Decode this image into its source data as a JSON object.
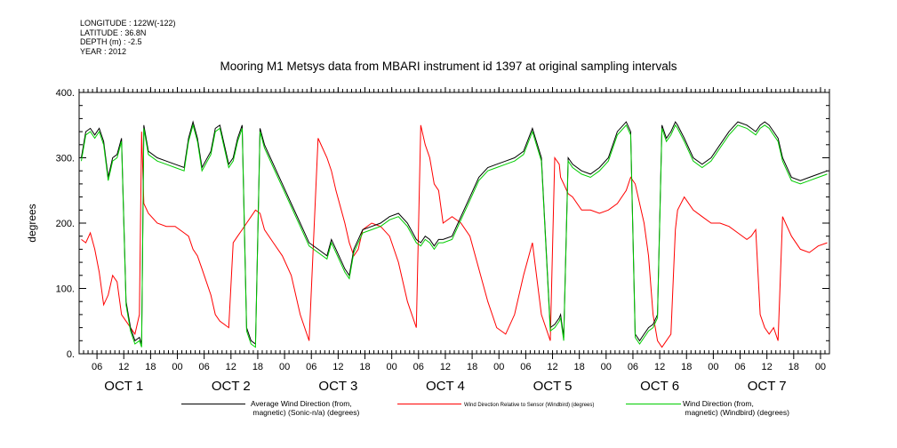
{
  "meta": {
    "longitude": "LONGITUDE : 122W(-122)",
    "latitude": "LATITUDE : 36.8N",
    "depth": "DEPTH (m) : -2.5",
    "year": "YEAR : 2012"
  },
  "colors": {
    "black_series": "#000000",
    "red_series": "#ff0000",
    "green_series": "#00cc00",
    "axis": "#000000"
  },
  "chart_data": {
    "type": "line",
    "title": "Mooring M1 Metsys data from MBARI instrument id 1397 at original sampling intervals",
    "ylabel": "degrees",
    "xlabel": "",
    "ylim": [
      0,
      400
    ],
    "yticks": [
      0,
      100,
      200,
      300,
      400
    ],
    "ytick_labels": [
      "0.",
      "100.",
      "200.",
      "300.",
      "400."
    ],
    "x_unit": "hours since 2012-10-01 00:00",
    "xlim": [
      2,
      170
    ],
    "hour_ticks": [
      {
        "x": 6,
        "label": "06"
      },
      {
        "x": 12,
        "label": "12"
      },
      {
        "x": 18,
        "label": "18"
      },
      {
        "x": 24,
        "label": "00"
      },
      {
        "x": 30,
        "label": "06"
      },
      {
        "x": 36,
        "label": "12"
      },
      {
        "x": 42,
        "label": "18"
      },
      {
        "x": 48,
        "label": "00"
      },
      {
        "x": 54,
        "label": "06"
      },
      {
        "x": 60,
        "label": "12"
      },
      {
        "x": 66,
        "label": "18"
      },
      {
        "x": 72,
        "label": "00"
      },
      {
        "x": 78,
        "label": "06"
      },
      {
        "x": 84,
        "label": "12"
      },
      {
        "x": 90,
        "label": "18"
      },
      {
        "x": 96,
        "label": "00"
      },
      {
        "x": 102,
        "label": "06"
      },
      {
        "x": 108,
        "label": "12"
      },
      {
        "x": 114,
        "label": "18"
      },
      {
        "x": 120,
        "label": "00"
      },
      {
        "x": 126,
        "label": "06"
      },
      {
        "x": 132,
        "label": "12"
      },
      {
        "x": 138,
        "label": "18"
      },
      {
        "x": 144,
        "label": "00"
      },
      {
        "x": 150,
        "label": "06"
      },
      {
        "x": 156,
        "label": "12"
      },
      {
        "x": 162,
        "label": "18"
      },
      {
        "x": 168,
        "label": "00"
      }
    ],
    "day_labels": [
      {
        "x": 12,
        "label": "OCT  1"
      },
      {
        "x": 36,
        "label": "OCT  2"
      },
      {
        "x": 60,
        "label": "OCT  3"
      },
      {
        "x": 84,
        "label": "OCT  4"
      },
      {
        "x": 108,
        "label": "OCT  5"
      },
      {
        "x": 132,
        "label": "OCT  6"
      },
      {
        "x": 156,
        "label": "OCT  7"
      }
    ],
    "legend_placement": "bottom",
    "grid": false,
    "series": [
      {
        "name": "Average Wind Direction (from,\n magnetic) (Sonic-n/a) (degrees)",
        "color": "#000000",
        "x": [
          2.5,
          3.5,
          4.5,
          5.5,
          6.5,
          7.5,
          8.5,
          9.5,
          10.5,
          11.5,
          12.5,
          13.5,
          14.5,
          15.5,
          16,
          16.5,
          17.5,
          19.5,
          21.5,
          23.5,
          25.5,
          26.5,
          27.5,
          28.5,
          29.5,
          31.5,
          32.5,
          33.5,
          35.5,
          36.5,
          37.5,
          38.5,
          39.5,
          40.5,
          41.5,
          42.5,
          43.5,
          45.5,
          47.5,
          49.5,
          51.5,
          53.5,
          55.5,
          57.5,
          58.5,
          59.5,
          61.5,
          62.5,
          63.5,
          64.5,
          65.5,
          67.5,
          69.5,
          71.5,
          73.5,
          75.5,
          77.5,
          78.5,
          79.5,
          80.5,
          81.5,
          82.5,
          83.5,
          85.5,
          87.5,
          89.5,
          91.5,
          93.5,
          95.5,
          97.5,
          99.5,
          101.5,
          103.5,
          105.5,
          107.5,
          108.5,
          109.5,
          109.8,
          110.5,
          111.5,
          112.5,
          114.5,
          116.5,
          118.5,
          120.5,
          122.5,
          124.5,
          125.5,
          126.5,
          127.5,
          128.5,
          129.5,
          130.5,
          131.5,
          132.5,
          133.5,
          134.5,
          135.5,
          136,
          137.5,
          139.5,
          141.5,
          143.5,
          145.5,
          147.5,
          149.5,
          151.5,
          152.5,
          153.5,
          154.5,
          155.5,
          156.5,
          157.5,
          158.5,
          159.5,
          161.5,
          163.5,
          165.5,
          167.5,
          169.5
        ],
        "values": [
          300,
          340,
          345,
          335,
          345,
          325,
          270,
          300,
          305,
          330,
          80,
          40,
          20,
          25,
          15,
          350,
          310,
          300,
          295,
          290,
          285,
          330,
          355,
          330,
          285,
          310,
          345,
          350,
          290,
          300,
          330,
          350,
          40,
          20,
          15,
          345,
          320,
          290,
          260,
          230,
          200,
          170,
          160,
          150,
          175,
          160,
          130,
          120,
          160,
          175,
          190,
          195,
          200,
          210,
          215,
          200,
          175,
          170,
          180,
          175,
          165,
          175,
          175,
          180,
          210,
          240,
          270,
          285,
          290,
          295,
          300,
          310,
          345,
          300,
          40,
          45,
          55,
          60,
          25,
          300,
          290,
          280,
          275,
          285,
          300,
          340,
          355,
          340,
          30,
          20,
          30,
          40,
          45,
          60,
          350,
          330,
          340,
          355,
          350,
          330,
          300,
          290,
          300,
          320,
          340,
          355,
          350,
          345,
          340,
          350,
          355,
          350,
          340,
          330,
          300,
          270,
          265,
          270,
          275,
          280
        ]
      },
      {
        "name": "Wind Direction Relative to Sensor (Windbird) (degrees)",
        "color": "#ff0000",
        "x": [
          2.5,
          3.5,
          4.5,
          5.5,
          6.5,
          7.5,
          8.5,
          9.5,
          10.5,
          11.5,
          12.5,
          13.5,
          14.5,
          15.5,
          16,
          16.5,
          17.5,
          19.5,
          21.5,
          23.5,
          25.5,
          26.5,
          27.5,
          28.5,
          29.5,
          31.5,
          32.5,
          33.5,
          35.5,
          36.5,
          37.5,
          38.5,
          39.5,
          40.5,
          41.5,
          42.5,
          43.5,
          45.5,
          47.5,
          49.5,
          51.5,
          53.5,
          55.5,
          57.5,
          58.5,
          59.5,
          61.5,
          62.5,
          63.5,
          64.5,
          65.5,
          67.5,
          69.5,
          71.5,
          73.5,
          75.5,
          77.5,
          78.5,
          79.5,
          80.5,
          81.5,
          82.5,
          83.5,
          85.5,
          87.5,
          89.5,
          91.5,
          93.5,
          95.5,
          97.5,
          99.5,
          101.5,
          103.5,
          105.5,
          107.5,
          108.5,
          109.5,
          109.8,
          110.5,
          111.5,
          112.5,
          114.5,
          116.5,
          118.5,
          120.5,
          122.5,
          124.5,
          125.5,
          126.5,
          127.5,
          128.5,
          129.5,
          130.5,
          131.5,
          132.5,
          133.5,
          134.5,
          135.5,
          136,
          137.5,
          139.5,
          141.5,
          143.5,
          145.5,
          147.5,
          149.5,
          151.5,
          152.5,
          153.5,
          154.5,
          155.5,
          156.5,
          157.5,
          158.5,
          159.5,
          161.5,
          163.5,
          165.5,
          167.5,
          169.5
        ],
        "values": [
          175,
          170,
          185,
          160,
          125,
          75,
          90,
          120,
          110,
          60,
          50,
          40,
          30,
          60,
          340,
          230,
          215,
          200,
          195,
          195,
          185,
          180,
          160,
          150,
          130,
          90,
          60,
          50,
          40,
          170,
          180,
          190,
          200,
          210,
          220,
          215,
          190,
          170,
          150,
          120,
          60,
          20,
          330,
          300,
          280,
          250,
          200,
          170,
          150,
          160,
          190,
          200,
          195,
          180,
          140,
          80,
          40,
          350,
          320,
          300,
          260,
          250,
          200,
          210,
          200,
          180,
          130,
          80,
          40,
          30,
          60,
          120,
          170,
          60,
          20,
          300,
          290,
          270,
          260,
          245,
          240,
          220,
          220,
          215,
          220,
          230,
          250,
          270,
          260,
          230,
          200,
          150,
          60,
          20,
          10,
          20,
          30,
          190,
          220,
          240,
          220,
          210,
          200,
          200,
          195,
          185,
          175,
          180,
          190,
          60,
          40,
          30,
          40,
          20,
          210,
          180,
          160,
          155,
          165,
          170
        ]
      },
      {
        "name": "Wind Direction (from,\n magnetic) (Windbird) (degrees)",
        "color": "#00cc00",
        "x": [
          2.5,
          3.5,
          4.5,
          5.5,
          6.5,
          7.5,
          8.5,
          9.5,
          10.5,
          11.5,
          12.5,
          13.5,
          14.5,
          15.5,
          16,
          16.5,
          17.5,
          19.5,
          21.5,
          23.5,
          25.5,
          26.5,
          27.5,
          28.5,
          29.5,
          31.5,
          32.5,
          33.5,
          35.5,
          36.5,
          37.5,
          38.5,
          39.5,
          40.5,
          41.5,
          42.5,
          43.5,
          45.5,
          47.5,
          49.5,
          51.5,
          53.5,
          55.5,
          57.5,
          58.5,
          59.5,
          61.5,
          62.5,
          63.5,
          64.5,
          65.5,
          67.5,
          69.5,
          71.5,
          73.5,
          75.5,
          77.5,
          78.5,
          79.5,
          80.5,
          81.5,
          82.5,
          83.5,
          85.5,
          87.5,
          89.5,
          91.5,
          93.5,
          95.5,
          97.5,
          99.5,
          101.5,
          103.5,
          105.5,
          107.5,
          108.5,
          109.5,
          109.8,
          110.5,
          111.5,
          112.5,
          114.5,
          116.5,
          118.5,
          120.5,
          122.5,
          124.5,
          125.5,
          126.5,
          127.5,
          128.5,
          129.5,
          130.5,
          131.5,
          132.5,
          133.5,
          134.5,
          135.5,
          136,
          137.5,
          139.5,
          141.5,
          143.5,
          145.5,
          147.5,
          149.5,
          151.5,
          152.5,
          153.5,
          154.5,
          155.5,
          156.5,
          157.5,
          158.5,
          159.5,
          161.5,
          163.5,
          165.5,
          167.5,
          169.5
        ],
        "values": [
          295,
          335,
          340,
          330,
          340,
          320,
          265,
          295,
          300,
          325,
          75,
          35,
          15,
          20,
          10,
          345,
          305,
          295,
          290,
          285,
          280,
          325,
          350,
          325,
          280,
          305,
          340,
          345,
          285,
          295,
          325,
          345,
          35,
          15,
          10,
          340,
          315,
          285,
          255,
          225,
          195,
          165,
          155,
          145,
          170,
          155,
          125,
          115,
          155,
          170,
          185,
          190,
          195,
          205,
          210,
          195,
          170,
          165,
          175,
          170,
          160,
          170,
          170,
          175,
          205,
          235,
          265,
          280,
          285,
          290,
          295,
          305,
          340,
          295,
          35,
          40,
          50,
          55,
          20,
          295,
          285,
          275,
          270,
          280,
          295,
          335,
          350,
          335,
          25,
          15,
          25,
          35,
          40,
          55,
          345,
          325,
          335,
          350,
          345,
          325,
          295,
          285,
          295,
          315,
          335,
          350,
          345,
          340,
          335,
          345,
          350,
          345,
          335,
          325,
          295,
          265,
          260,
          265,
          270,
          275
        ]
      }
    ]
  }
}
